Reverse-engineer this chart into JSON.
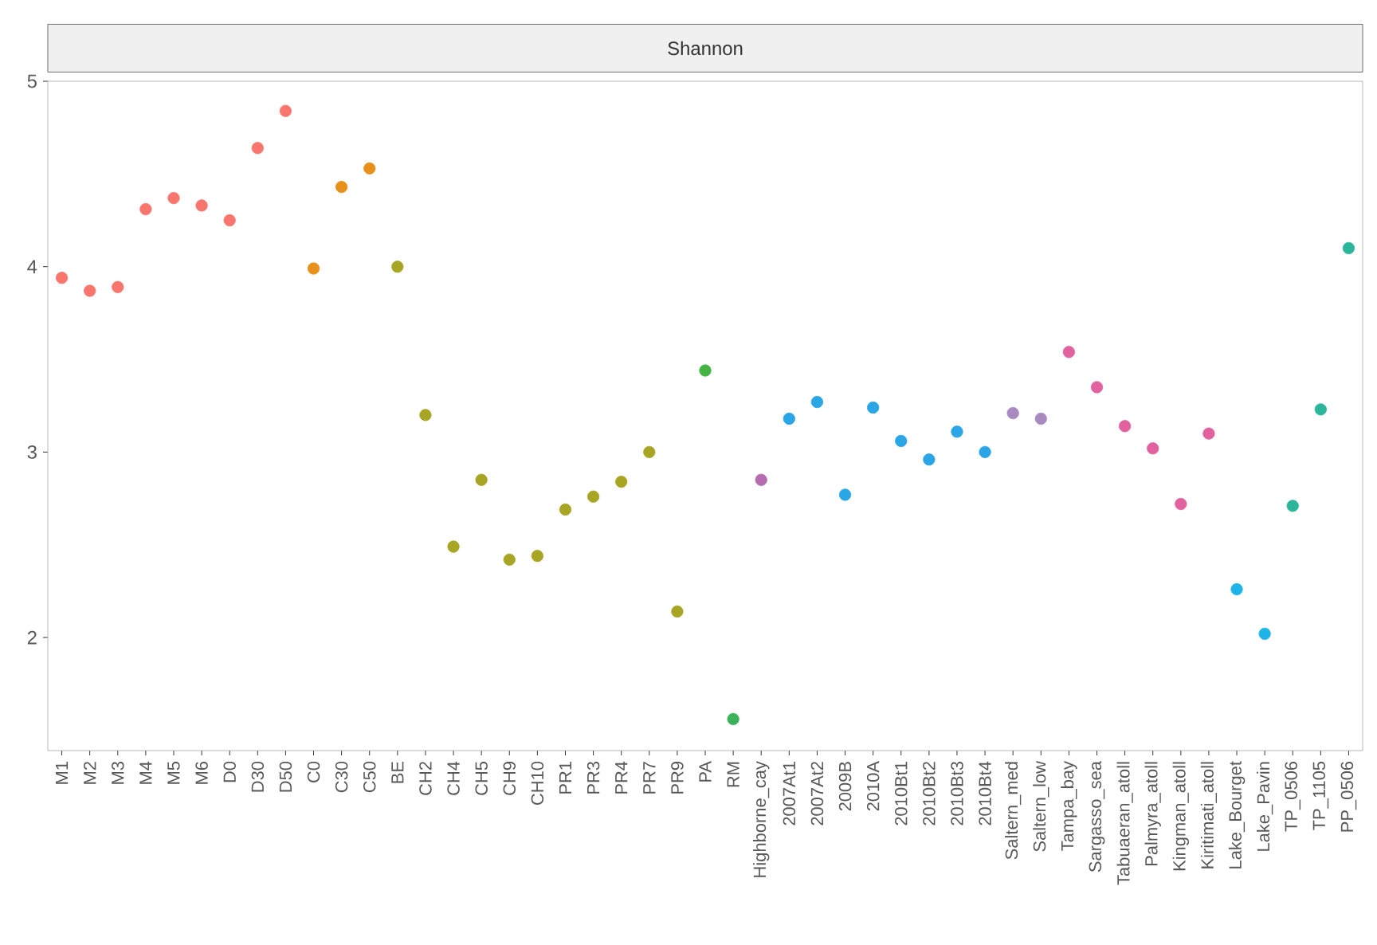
{
  "chart_data": {
    "type": "scatter",
    "title": "Shannon",
    "categories": [
      "M1",
      "M2",
      "M3",
      "M4",
      "M5",
      "M6",
      "D0",
      "D30",
      "D50",
      "C0",
      "C30",
      "C50",
      "BE",
      "CH2",
      "CH4",
      "CH5",
      "CH9",
      "CH10",
      "PR1",
      "PR3",
      "PR4",
      "PR7",
      "PR9",
      "PA",
      "RM",
      "Highborne_cay",
      "2007At1",
      "2007At2",
      "2009B",
      "2010A",
      "2010Bt1",
      "2010Bt2",
      "2010Bt3",
      "2010Bt4",
      "Saltern_med",
      "Saltern_low",
      "Tampa_bay",
      "Sargasso_sea",
      "Tabuaeran_atoll",
      "Palmyra_atoll",
      "Kingman_atoll",
      "Kiritimati_atoll",
      "Lake_Bourget",
      "Lake_Pavin",
      "TP_0506",
      "TP_1105",
      "PP_0506"
    ],
    "values": [
      3.94,
      3.87,
      3.89,
      4.31,
      4.37,
      4.33,
      4.25,
      4.64,
      4.84,
      3.99,
      4.43,
      4.53,
      4.0,
      3.2,
      2.49,
      2.85,
      2.42,
      2.44,
      2.69,
      2.76,
      2.84,
      3.0,
      2.14,
      3.44,
      1.56,
      2.85,
      3.18,
      3.27,
      2.77,
      3.24,
      3.06,
      2.96,
      3.11,
      3.0,
      3.21,
      3.18,
      3.54,
      3.35,
      3.14,
      3.02,
      2.72,
      3.1,
      2.26,
      2.02,
      2.71,
      3.23,
      4.1
    ],
    "colors": [
      "#f8766d",
      "#f8766d",
      "#f8766d",
      "#f8766d",
      "#f8766d",
      "#f8766d",
      "#f8766d",
      "#f8766d",
      "#f8766d",
      "#e8901c",
      "#e8901c",
      "#e8901c",
      "#a9a524",
      "#a9a524",
      "#a9a524",
      "#a9a524",
      "#a9a524",
      "#a9a524",
      "#a9a524",
      "#a9a524",
      "#a9a524",
      "#a9a524",
      "#a9a524",
      "#44b444",
      "#3cb35a",
      "#b56cb0",
      "#2aa5e6",
      "#2aa5e6",
      "#2aa5e6",
      "#2aa5e6",
      "#2aa5e6",
      "#2aa5e6",
      "#2aa5e6",
      "#2aa5e6",
      "#a88ac0",
      "#a88ac0",
      "#e2619f",
      "#e2619f",
      "#e2619f",
      "#e2619f",
      "#e2619f",
      "#e2619f",
      "#1eb4e8",
      "#1eb4e8",
      "#2bb59a",
      "#2bb59a",
      "#2bb59a"
    ],
    "ylim": [
      1.39,
      5.0
    ],
    "yticks": [
      2,
      3,
      4,
      5
    ],
    "grid": false,
    "marker": "circle"
  }
}
